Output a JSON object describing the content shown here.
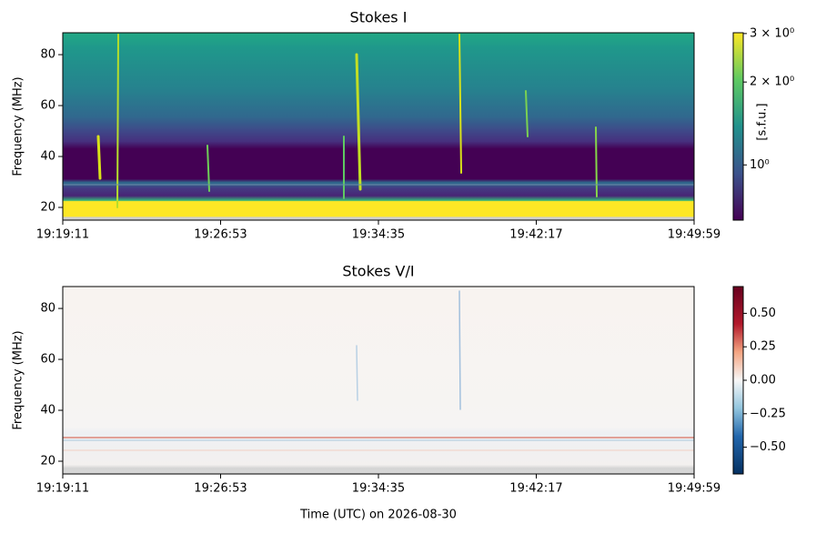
{
  "chart_data": [
    {
      "type": "heatmap",
      "title": "Stokes I",
      "y_label": "Frequency (MHz)",
      "xlim": [
        0,
        1848
      ],
      "xticks": [
        {
          "value": 0,
          "label": "19:19:11"
        },
        {
          "value": 462,
          "label": "19:26:53"
        },
        {
          "value": 924,
          "label": "19:34:35"
        },
        {
          "value": 1386,
          "label": "19:42:17"
        },
        {
          "value": 1848,
          "label": "19:49:59"
        }
      ],
      "ylim": [
        15,
        88.6
      ],
      "yticks": [
        20,
        40,
        60,
        80
      ],
      "colorbar": {
        "label": "[s.f.u.]",
        "colormap": "viridis",
        "scale": "log",
        "lim": [
          0.63,
          3.02
        ],
        "ticks": [
          {
            "value": 1,
            "label": "10⁰"
          },
          {
            "value": 2,
            "label": "2 × 10⁰"
          },
          {
            "value": 3,
            "label": "3 × 10⁰"
          }
        ]
      }
    },
    {
      "type": "heatmap",
      "title": "Stokes V/I",
      "y_label": "Frequency (MHz)",
      "x_label": "Time (UTC) on 2026-08-30",
      "xlim": [
        0,
        1848
      ],
      "xticks": [
        {
          "value": 0,
          "label": "19:19:11"
        },
        {
          "value": 462,
          "label": "19:26:53"
        },
        {
          "value": 924,
          "label": "19:34:35"
        },
        {
          "value": 1386,
          "label": "19:42:17"
        },
        {
          "value": 1848,
          "label": "19:49:59"
        }
      ],
      "ylim": [
        15,
        88.6
      ],
      "yticks": [
        20,
        40,
        60,
        80
      ],
      "colorbar": {
        "colormap": "RdBu_r",
        "scale": "linear",
        "lim": [
          -0.7,
          0.7
        ],
        "ticks": [
          {
            "value": -0.5,
            "label": "−0.50"
          },
          {
            "value": -0.25,
            "label": "−0.25"
          },
          {
            "value": 0,
            "label": "0.00"
          },
          {
            "value": 0.25,
            "label": "0.25"
          },
          {
            "value": 0.5,
            "label": "0.50"
          }
        ]
      }
    }
  ]
}
